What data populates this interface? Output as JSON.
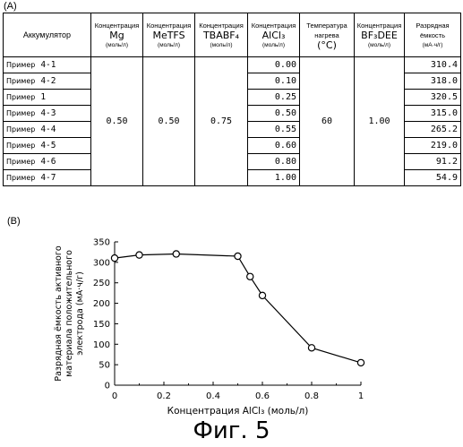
{
  "panel_a_label": "(A)",
  "panel_b_label": "(B)",
  "caption": "Фиг. 5",
  "table": {
    "headers": {
      "accumulator": "Аккумулятор",
      "mg": {
        "top": "Концентрация",
        "main": "Mg",
        "unit": "(моль/л)"
      },
      "metfs": {
        "top": "Концентрация",
        "main": "MeTFS",
        "unit": "(моль/л)"
      },
      "tbabf4": {
        "top": "Концентрация",
        "main": "TBABF₄",
        "unit": "(моль/л)"
      },
      "alcl3": {
        "top": "Концентрация",
        "main": "AlCl₃",
        "unit": "(моль/л)"
      },
      "temp": {
        "top": "Температура",
        "mid": "нагрева",
        "main": "(°C)"
      },
      "bf3dee": {
        "top": "Концентрация",
        "main": "BF₃DEE",
        "unit": "(моль/л)"
      },
      "capacity": {
        "top": "Разрядная",
        "mid": "ёмкость",
        "unit": "(мА·ч/г)"
      }
    },
    "merged": {
      "mg": "0.50",
      "metfs": "0.50",
      "tbabf4": "0.75",
      "temp": "60",
      "bf3dee": "1.00"
    },
    "rows": [
      {
        "prefix": "Пример",
        "id": "4-1",
        "alcl3": "0.00",
        "capacity": "310.4"
      },
      {
        "prefix": "Пример",
        "id": "4-2",
        "alcl3": "0.10",
        "capacity": "318.0"
      },
      {
        "prefix": "Пример",
        "id": "1",
        "alcl3": "0.25",
        "capacity": "320.5"
      },
      {
        "prefix": "Пример",
        "id": "4-3",
        "alcl3": "0.50",
        "capacity": "315.0"
      },
      {
        "prefix": "Пример",
        "id": "4-4",
        "alcl3": "0.55",
        "capacity": "265.2"
      },
      {
        "prefix": "Пример",
        "id": "4-5",
        "alcl3": "0.60",
        "capacity": "219.0"
      },
      {
        "prefix": "Пример",
        "id": "4-6",
        "alcl3": "0.80",
        "capacity": "91.2"
      },
      {
        "prefix": "Пример",
        "id": "4-7",
        "alcl3": "1.00",
        "capacity": "54.9"
      }
    ]
  },
  "chart_data": {
    "type": "line",
    "x": [
      0.0,
      0.1,
      0.25,
      0.5,
      0.55,
      0.6,
      0.8,
      1.0
    ],
    "series": [
      {
        "values": [
          310.4,
          318.0,
          320.5,
          315.0,
          265.2,
          219.0,
          91.2,
          54.9
        ]
      }
    ],
    "xlabel": "Концентрация AlCl₃ (моль/л)",
    "ylabel_lines": [
      "Разрядная ёмкость активного",
      "материала положительного",
      "электрода (мА·ч/г)"
    ],
    "xlim": [
      0,
      1
    ],
    "ylim": [
      0,
      350
    ],
    "xticks": [
      "0",
      "0.2",
      "0.4",
      "0.6",
      "0.8",
      "1"
    ],
    "yticks": [
      "0",
      "50",
      "100",
      "150",
      "200",
      "250",
      "300",
      "350"
    ],
    "grid": false,
    "marker": "open-circle",
    "color": "#000000"
  }
}
